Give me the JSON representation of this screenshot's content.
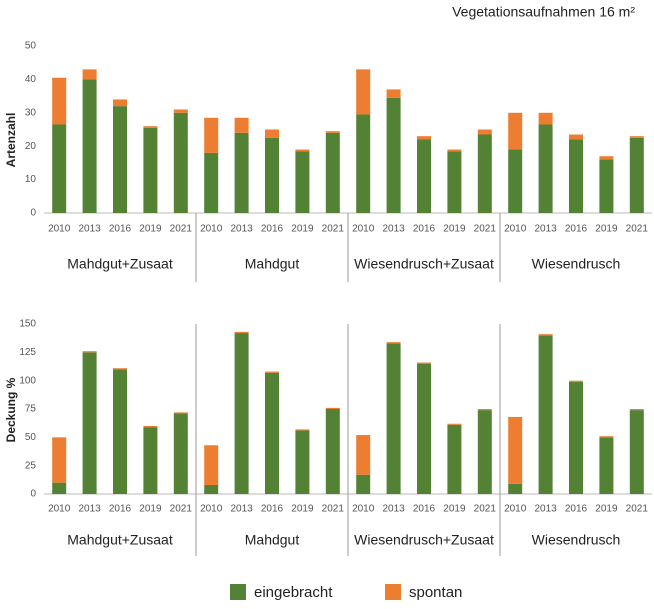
{
  "chart_data": [
    {
      "type": "stacked-bar",
      "title": "Vegetationsaufnahmen 16 m²",
      "ylabel": "Artenzahl",
      "categories": [
        "2010",
        "2013",
        "2016",
        "2019",
        "2021",
        "2010",
        "2013",
        "2016",
        "2019",
        "2021",
        "2010",
        "2013",
        "2016",
        "2019",
        "2021",
        "2010",
        "2013",
        "2016",
        "2019",
        "2021"
      ],
      "groups": [
        "Mahdgut+Zusaat",
        "Mahdgut",
        "Wiesendrusch+Zusaat",
        "Wiesendrusch"
      ],
      "series": [
        {
          "name": "eingebracht",
          "color": "#548235",
          "values": [
            26.5,
            40,
            32,
            25.5,
            30,
            18,
            24,
            22.5,
            18.5,
            24,
            29.5,
            34.5,
            22,
            18.5,
            23.5,
            19,
            26.5,
            22,
            16,
            22.5
          ]
        },
        {
          "name": "spontan",
          "color": "#ed7d31",
          "values": [
            14,
            3,
            2,
            0.5,
            1,
            10.5,
            4.5,
            2.5,
            0.5,
            0.5,
            13.5,
            2.5,
            1,
            0.5,
            1.5,
            11,
            3.5,
            1.5,
            1,
            0.5
          ]
        }
      ],
      "ylim": [
        0,
        50
      ],
      "yticks": [
        0,
        10,
        20,
        30,
        40,
        50
      ]
    },
    {
      "type": "stacked-bar",
      "ylabel": "Deckung %",
      "categories": [
        "2010",
        "2013",
        "2016",
        "2019",
        "2021",
        "2010",
        "2013",
        "2016",
        "2019",
        "2021",
        "2010",
        "2013",
        "2016",
        "2019",
        "2021",
        "2010",
        "2013",
        "2016",
        "2019",
        "2021"
      ],
      "groups": [
        "Mahdgut+Zusaat",
        "Mahdgut",
        "Wiesendrusch+Zusaat",
        "Wiesendrusch"
      ],
      "series": [
        {
          "color": "#548235",
          "values": [
            10,
            125,
            110,
            59,
            71,
            8,
            142,
            107,
            56,
            75,
            17,
            133,
            115,
            61,
            74,
            9,
            140,
            99,
            50,
            74
          ]
        },
        {
          "color": "#ed7d31",
          "values": [
            40,
            1,
            1,
            1,
            1,
            35,
            1,
            1,
            1,
            1,
            35,
            1,
            1,
            1,
            1,
            59,
            1,
            1,
            1,
            1
          ]
        }
      ],
      "ylim": [
        0,
        150
      ],
      "yticks": [
        0,
        25,
        50,
        75,
        100,
        125,
        150
      ]
    }
  ]
}
